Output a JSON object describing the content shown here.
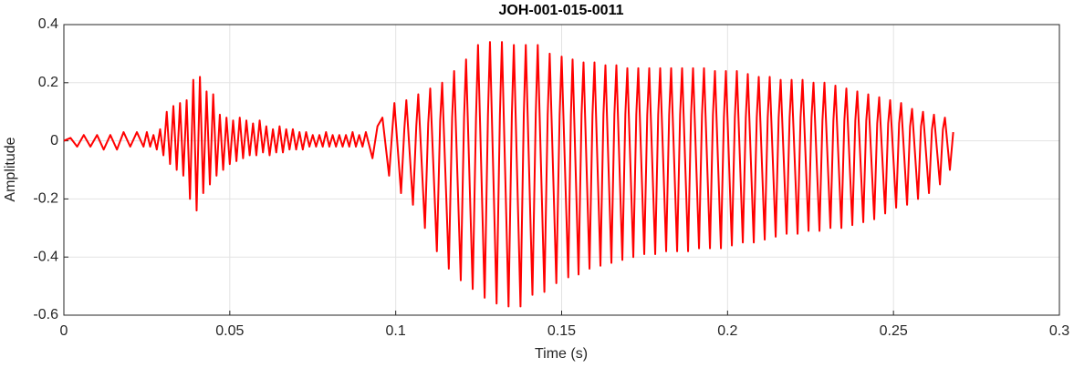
{
  "chart_data": {
    "type": "line",
    "title": "JOH-001-015-0011",
    "x_label": "Time (s)",
    "y_label": "Amplitude",
    "color": "#ff0000",
    "grid": true,
    "xlim": [
      0,
      0.3
    ],
    "ylim": [
      -0.6,
      0.4
    ],
    "xticks": [
      0,
      0.05,
      0.1,
      0.15,
      0.2,
      0.25,
      0.3
    ],
    "yticks": [
      -0.6,
      -0.4,
      -0.2,
      0,
      0.2,
      0.4
    ],
    "x": [
      0.0,
      0.002,
      0.004,
      0.006,
      0.008,
      0.01,
      0.012,
      0.014,
      0.016,
      0.018,
      0.02,
      0.022,
      0.024,
      0.025,
      0.026,
      0.027,
      0.028,
      0.029,
      0.03,
      0.031,
      0.032,
      0.033,
      0.034,
      0.035,
      0.036,
      0.037,
      0.038,
      0.039,
      0.04,
      0.041,
      0.042,
      0.043,
      0.044,
      0.045,
      0.046,
      0.047,
      0.048,
      0.049,
      0.05,
      0.051,
      0.052,
      0.053,
      0.054,
      0.055,
      0.056,
      0.057,
      0.058,
      0.059,
      0.06,
      0.061,
      0.062,
      0.063,
      0.064,
      0.065,
      0.066,
      0.067,
      0.068,
      0.069,
      0.07,
      0.071,
      0.072,
      0.073,
      0.074,
      0.075,
      0.076,
      0.077,
      0.078,
      0.079,
      0.08,
      0.081,
      0.082,
      0.083,
      0.084,
      0.085,
      0.086,
      0.087,
      0.088,
      0.089,
      0.09,
      0.091,
      0.093,
      0.0945,
      0.096,
      0.098,
      0.099,
      0.0996,
      0.1016,
      0.1026,
      0.1032,
      0.1052,
      0.1062,
      0.1068,
      0.1088,
      0.1098,
      0.1104,
      0.1124,
      0.1134,
      0.114,
      0.116,
      0.117,
      0.1176,
      0.1196,
      0.1206,
      0.1212,
      0.1232,
      0.1242,
      0.1248,
      0.1268,
      0.1278,
      0.1284,
      0.1304,
      0.1314,
      0.132,
      0.134,
      0.135,
      0.1356,
      0.1376,
      0.1386,
      0.1392,
      0.1412,
      0.1422,
      0.1428,
      0.1448,
      0.1458,
      0.1464,
      0.1484,
      0.1494,
      0.15,
      0.152,
      0.1528,
      0.1533,
      0.1551,
      0.156,
      0.1566,
      0.1584,
      0.1593,
      0.1599,
      0.1617,
      0.1626,
      0.1632,
      0.165,
      0.1659,
      0.1665,
      0.1683,
      0.1692,
      0.1698,
      0.1716,
      0.1725,
      0.1731,
      0.1749,
      0.1758,
      0.1764,
      0.1782,
      0.1791,
      0.1797,
      0.1815,
      0.1824,
      0.183,
      0.1848,
      0.1857,
      0.1863,
      0.1881,
      0.189,
      0.1896,
      0.1914,
      0.1923,
      0.1929,
      0.1947,
      0.1956,
      0.1962,
      0.198,
      0.1989,
      0.1995,
      0.2013,
      0.2022,
      0.2028,
      0.2046,
      0.2055,
      0.2061,
      0.2079,
      0.2088,
      0.2094,
      0.2112,
      0.2121,
      0.2127,
      0.2145,
      0.2154,
      0.216,
      0.2178,
      0.2187,
      0.2193,
      0.2211,
      0.222,
      0.2226,
      0.2244,
      0.2253,
      0.2259,
      0.2277,
      0.2286,
      0.2292,
      0.231,
      0.2319,
      0.2325,
      0.2343,
      0.2352,
      0.2358,
      0.2376,
      0.2385,
      0.2391,
      0.2409,
      0.2418,
      0.2424,
      0.2442,
      0.2451,
      0.2457,
      0.2475,
      0.2484,
      0.249,
      0.2508,
      0.2517,
      0.2523,
      0.2541,
      0.255,
      0.2556,
      0.2574,
      0.2583,
      0.2589,
      0.2607,
      0.2616,
      0.2622,
      0.264,
      0.2649,
      0.2655,
      0.267,
      0.268
    ],
    "values": [
      0,
      0.01,
      -0.02,
      0.02,
      -0.02,
      0.02,
      -0.03,
      0.02,
      -0.03,
      0.03,
      -0.02,
      0.03,
      -0.02,
      0.03,
      -0.02,
      0.02,
      -0.03,
      0.04,
      -0.05,
      0.1,
      -0.08,
      0.12,
      -0.1,
      0.13,
      -0.12,
      0.14,
      -0.2,
      0.21,
      -0.24,
      0.22,
      -0.18,
      0.17,
      -0.15,
      0.16,
      -0.12,
      0.09,
      -0.1,
      0.08,
      -0.08,
      0.07,
      -0.07,
      0.08,
      -0.06,
      0.07,
      -0.05,
      0.06,
      -0.05,
      0.07,
      -0.04,
      0.05,
      -0.05,
      0.04,
      -0.04,
      0.05,
      -0.04,
      0.04,
      -0.03,
      0.04,
      -0.03,
      0.03,
      -0.03,
      0.03,
      -0.02,
      0.02,
      -0.02,
      0.02,
      -0.02,
      0.03,
      -0.02,
      0.02,
      -0.02,
      0.02,
      -0.02,
      0.02,
      -0.02,
      0.03,
      -0.02,
      0.02,
      -0.02,
      0.03,
      -0.06,
      0.05,
      0.08,
      -0.12,
      0.04,
      0.13,
      -0.18,
      0.04,
      0.14,
      -0.22,
      0.05,
      0.16,
      -0.3,
      0.06,
      0.18,
      -0.38,
      0.07,
      0.2,
      -0.44,
      0.08,
      0.24,
      -0.48,
      0.08,
      0.28,
      -0.51,
      0.08,
      0.33,
      -0.54,
      0.09,
      0.34,
      -0.56,
      0.09,
      0.34,
      -0.57,
      0.09,
      0.33,
      -0.57,
      0.09,
      0.33,
      -0.53,
      0.09,
      0.33,
      -0.52,
      0.09,
      0.3,
      -0.49,
      0.09,
      0.29,
      -0.47,
      0.09,
      0.28,
      -0.46,
      0.09,
      0.27,
      -0.44,
      0.09,
      0.27,
      -0.43,
      0.09,
      0.26,
      -0.42,
      0.09,
      0.26,
      -0.41,
      0.09,
      0.25,
      -0.4,
      0.09,
      0.25,
      -0.39,
      0.09,
      0.25,
      -0.39,
      0.09,
      0.25,
      -0.38,
      0.09,
      0.25,
      -0.38,
      0.09,
      0.25,
      -0.38,
      0.09,
      0.25,
      -0.37,
      0.09,
      0.25,
      -0.37,
      0.09,
      0.24,
      -0.37,
      0.08,
      0.24,
      -0.36,
      0.08,
      0.24,
      -0.35,
      0.08,
      0.23,
      -0.35,
      0.08,
      0.22,
      -0.34,
      0.08,
      0.22,
      -0.33,
      0.08,
      0.21,
      -0.32,
      0.08,
      0.21,
      -0.32,
      0.08,
      0.21,
      -0.31,
      0.08,
      0.2,
      -0.31,
      0.07,
      0.2,
      -0.3,
      0.07,
      0.19,
      -0.3,
      0.07,
      0.18,
      -0.29,
      0.07,
      0.17,
      -0.28,
      0.07,
      0.16,
      -0.27,
      0.06,
      0.15,
      -0.25,
      0.06,
      0.14,
      -0.23,
      0.06,
      0.13,
      -0.22,
      0.05,
      0.11,
      -0.2,
      0.05,
      0.1,
      -0.18,
      0.04,
      0.09,
      -0.15,
      0.04,
      0.08,
      -0.1,
      0.03
    ]
  }
}
